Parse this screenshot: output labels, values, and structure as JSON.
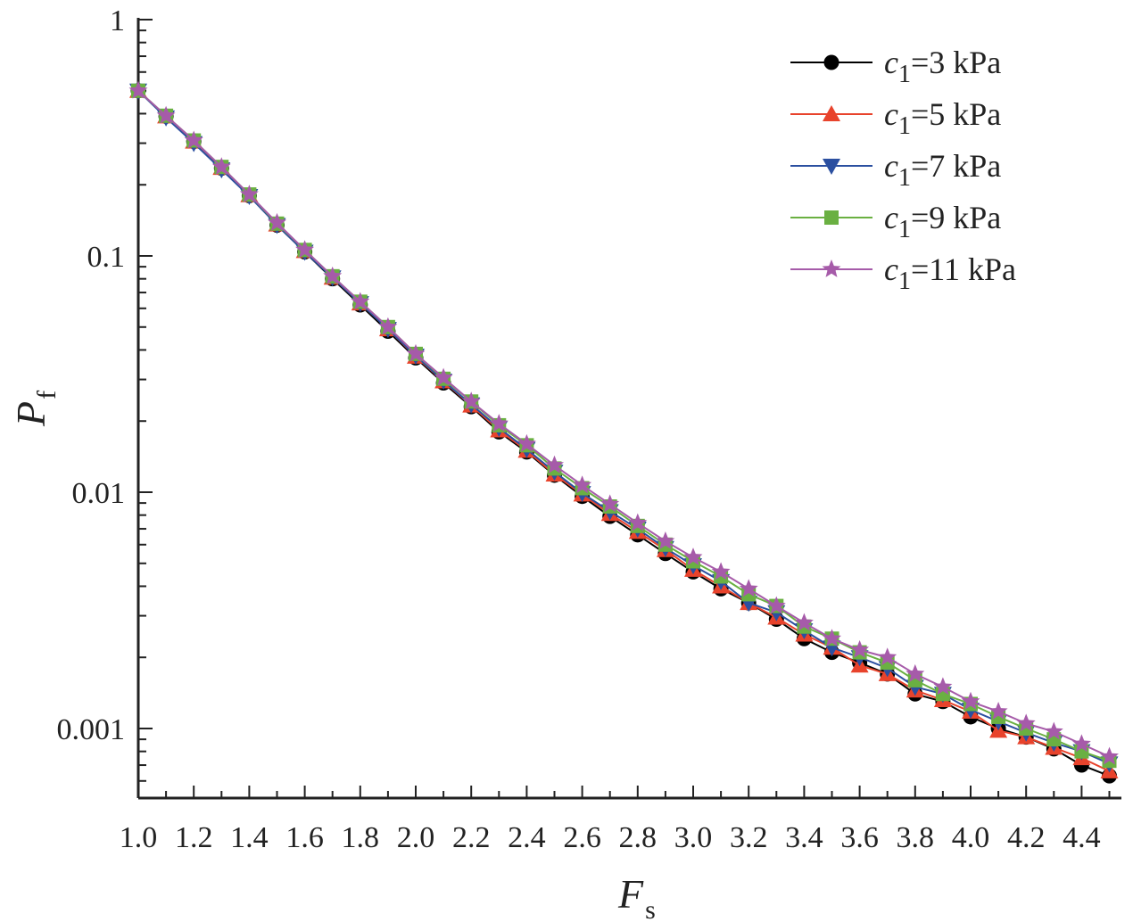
{
  "chart_data": {
    "type": "line",
    "xlabel": "F",
    "xlabel_sub": "s",
    "ylabel": "P",
    "ylabel_sub": "f",
    "y_scale": "log",
    "xlim": [
      1.0,
      4.5
    ],
    "ylim": [
      0.00055,
      1
    ],
    "x_ticks": [
      "1.0",
      "1.2",
      "1.4",
      "1.6",
      "1.8",
      "2.0",
      "2.2",
      "2.4",
      "2.6",
      "2.8",
      "3.0",
      "3.2",
      "3.4",
      "3.6",
      "3.8",
      "4.0",
      "4.2",
      "4.4"
    ],
    "y_ticks": [
      "1",
      "0.1",
      "0.01",
      "0.001"
    ],
    "grid": false,
    "legend_position": "top-right",
    "x": [
      1.0,
      1.1,
      1.2,
      1.3,
      1.4,
      1.5,
      1.6,
      1.7,
      1.8,
      1.9,
      2.0,
      2.1,
      2.2,
      2.3,
      2.4,
      2.5,
      2.6,
      2.7,
      2.8,
      2.9,
      3.0,
      3.1,
      3.2,
      3.3,
      3.4,
      3.5,
      3.6,
      3.7,
      3.8,
      3.9,
      4.0,
      4.1,
      4.2,
      4.3,
      4.4,
      4.5
    ],
    "series": [
      {
        "name": "c1=3 kPa",
        "label_var": "c",
        "label_sub": "1",
        "label_rest": "=3 kPa",
        "color": "#000000",
        "marker": "circle",
        "values": [
          0.5,
          0.39,
          0.305,
          0.235,
          0.18,
          0.135,
          0.104,
          0.08,
          0.062,
          0.048,
          0.037,
          0.029,
          0.023,
          0.018,
          0.0148,
          0.0118,
          0.0096,
          0.0079,
          0.0066,
          0.0055,
          0.0046,
          0.0039,
          0.0034,
          0.0029,
          0.0024,
          0.0021,
          0.0019,
          0.0017,
          0.0014,
          0.0013,
          0.00112,
          0.001,
          0.00092,
          0.00082,
          0.0007,
          0.00063
        ]
      },
      {
        "name": "c1=5 kPa",
        "label_var": "c",
        "label_sub": "1",
        "label_rest": "=5 kPa",
        "color": "#e8432c",
        "marker": "triangle-up",
        "values": [
          0.5,
          0.39,
          0.305,
          0.236,
          0.181,
          0.136,
          0.105,
          0.081,
          0.063,
          0.049,
          0.0375,
          0.0295,
          0.0233,
          0.0183,
          0.015,
          0.0119,
          0.0098,
          0.0081,
          0.0068,
          0.0057,
          0.0047,
          0.004,
          0.0034,
          0.00295,
          0.0025,
          0.0022,
          0.00185,
          0.0017,
          0.00145,
          0.00132,
          0.00118,
          0.00098,
          0.00092,
          0.00083,
          0.00075,
          0.00066
        ]
      },
      {
        "name": "c1=7 kPa",
        "label_var": "c",
        "label_sub": "1",
        "label_rest": "=7 kPa",
        "color": "#2b4fa0",
        "marker": "triangle-down",
        "values": [
          0.5,
          0.385,
          0.3,
          0.232,
          0.179,
          0.135,
          0.104,
          0.081,
          0.063,
          0.049,
          0.0378,
          0.0296,
          0.0235,
          0.0187,
          0.0152,
          0.0122,
          0.0099,
          0.0083,
          0.007,
          0.0058,
          0.0049,
          0.0042,
          0.0034,
          0.0031,
          0.0026,
          0.0022,
          0.002,
          0.0018,
          0.0015,
          0.0014,
          0.0012,
          0.00107,
          0.00096,
          0.00087,
          0.0008,
          0.00071
        ]
      },
      {
        "name": "c1=9 kPa",
        "label_var": "c",
        "label_sub": "1",
        "label_rest": "=9 kPa",
        "color": "#6ab042",
        "marker": "square",
        "values": [
          0.5,
          0.392,
          0.308,
          0.238,
          0.182,
          0.137,
          0.106,
          0.082,
          0.064,
          0.05,
          0.0385,
          0.0302,
          0.0242,
          0.0192,
          0.0158,
          0.0126,
          0.0104,
          0.0087,
          0.0072,
          0.006,
          0.0051,
          0.0044,
          0.0037,
          0.0033,
          0.0027,
          0.0024,
          0.0021,
          0.0019,
          0.0016,
          0.0014,
          0.00127,
          0.00112,
          0.001,
          0.0009,
          0.0008,
          0.00073
        ]
      },
      {
        "name": "c1=11 kPa",
        "label_var": "c",
        "label_sub": "1",
        "label_rest": "=11 kPa",
        "color": "#a65ba9",
        "marker": "star",
        "values": [
          0.5,
          0.392,
          0.308,
          0.238,
          0.182,
          0.138,
          0.106,
          0.082,
          0.064,
          0.05,
          0.0385,
          0.0305,
          0.0242,
          0.0195,
          0.016,
          0.013,
          0.0107,
          0.0089,
          0.0074,
          0.0062,
          0.0053,
          0.0046,
          0.0039,
          0.0033,
          0.0028,
          0.0024,
          0.00215,
          0.002,
          0.0017,
          0.0015,
          0.0013,
          0.00118,
          0.00105,
          0.00097,
          0.00086,
          0.00076
        ]
      }
    ]
  }
}
